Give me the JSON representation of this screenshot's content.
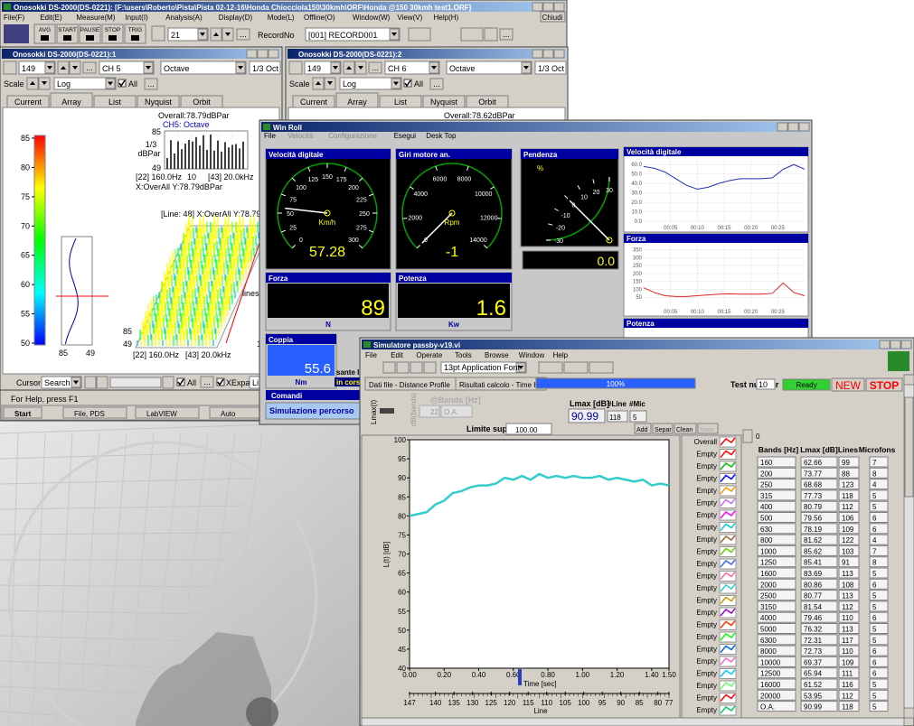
{
  "onosokki": {
    "title": "Onosokki DS-2000(DS-0221): [F:\\users\\Roberto\\Pista\\Pista 02-12-16\\Honda Chiocciola150\\30kmh\\ORF\\Honda @150 30kmh test1.ORF]",
    "close_button": "Chiudi",
    "menu": [
      "File(F)",
      "Edit(E)",
      "Measure(M)",
      "Input(I)",
      "Analysis(A)",
      "Display(D)",
      "Mode(L)",
      "Offline(O)",
      "Window(W)",
      "View(V)",
      "Help(H)"
    ],
    "toolbar": [
      "AVG",
      "START",
      "PAUSE",
      "STOP",
      "TRIG"
    ],
    "frame": "21",
    "ellipsis": "...",
    "record_label": "RecordNo",
    "record_value": "[001]  RECORD001",
    "panels": [
      {
        "title": "Onosokki DS-2000(DS-0221):1",
        "frame": "149",
        "channel": "CH 5",
        "mode": "Octave",
        "band": "1/3 Oct",
        "scale_label": "Scale",
        "scale": "Log",
        "all": "All",
        "tabs": [
          "Current",
          "Array",
          "List",
          "Nyquist",
          "Orbit"
        ],
        "overall": "Overall:78.79dBPar"
      },
      {
        "title": "Onosokki DS-2000(DS-0221):2",
        "frame": "149",
        "channel": "CH 6",
        "mode": "Octave",
        "band": "1/3 Oct",
        "scale_label": "Scale",
        "scale": "Log",
        "all": "All",
        "tabs": [
          "Current",
          "Array",
          "List",
          "Nyquist",
          "Orbit"
        ],
        "overall": "Overall:78.62dBPar"
      }
    ],
    "spectrum": {
      "channel": "CH5: Octave",
      "y_max": "85",
      "unit_top": "1/3",
      "unit_bottom": "dBPar",
      "y_min": "49",
      "x_start": "[22] 160.0Hz",
      "x_mid": "10",
      "x_end": "[43] 20.0kHz",
      "cursor": "X:OverAll Y:78.79dBPar"
    },
    "colorbar": {
      "ticks": [
        85,
        80,
        75,
        70,
        65,
        60,
        55,
        50
      ]
    },
    "trace": {
      "x_left": "85",
      "x_right": "49"
    },
    "waterfall": {
      "cursor": "[Line: 48]   X:OverAll Y:78.79dB",
      "lines_label": "lines",
      "z_top": "85",
      "z_bottom": "49",
      "x_start": "[22] 160.0Hz",
      "x_end": "[43] 20.0kHz",
      "line_end": "1",
      "line_start": "10"
    },
    "cursor_label": "Cursor",
    "cursor_value": "Search",
    "all": "All",
    "xexpand": "XExpand",
    "lin": "Lin",
    "status": "For Help, press F1",
    "taskbar": [
      "Start",
      "File, PDS",
      "LabVIEW",
      "Auto"
    ]
  },
  "winroll": {
    "title": "Win Roll",
    "menu": [
      "File",
      "Velocità",
      "Configurazione",
      "Esegui",
      "Desk Top"
    ],
    "gauges": [
      {
        "title": "Velocità digitale",
        "value": 57.28,
        "unit": "Km/h",
        "ticks": [
          0,
          25,
          50,
          75,
          100,
          125,
          150,
          175,
          200,
          225,
          250,
          275,
          300
        ]
      },
      {
        "title": "Giri motore an.",
        "value": -1,
        "unit": "Rpm",
        "ticks": [
          0,
          2000,
          4000,
          6000,
          8000,
          10000,
          12000,
          14000
        ]
      },
      {
        "title": "Pendenza",
        "value": 0.0,
        "value_label": "0.0",
        "unit": "%",
        "ticks": [
          30,
          20,
          10,
          0,
          -10,
          -20,
          -30
        ]
      }
    ],
    "displays": [
      {
        "title": "Forza",
        "value": 89,
        "unit": "N"
      },
      {
        "title": "Potenza",
        "value": 1.6,
        "unit": "Kw"
      },
      {
        "title": "Coppia",
        "value": 55.6,
        "unit": "Nm"
      }
    ],
    "charts": [
      {
        "title": "Velocità digitale",
        "color": "#2233aa",
        "xlim": [
          0,
          30
        ],
        "ylim": [
          0,
          65
        ],
        "yticks": [
          {
            "value": 60,
            "label": "60.0"
          },
          {
            "value": 50,
            "label": "50.0"
          },
          {
            "value": 40,
            "label": "40.0"
          },
          {
            "value": 30,
            "label": "30.0"
          },
          {
            "value": 20,
            "label": "20.0"
          },
          {
            "value": 10,
            "label": "10.0"
          },
          {
            "value": 0,
            "label": "0.0"
          }
        ],
        "xticks": [
          {
            "value": 5,
            "label": "00:05"
          },
          {
            "value": 10,
            "label": "00:10"
          },
          {
            "value": 15,
            "label": "00:15"
          },
          {
            "value": 20,
            "label": "00:20"
          },
          {
            "value": 25,
            "label": "00:25"
          }
        ],
        "x": [
          0,
          2,
          4,
          6,
          8,
          10,
          12,
          14,
          16,
          18,
          20,
          22,
          24,
          26,
          28,
          30
        ],
        "values": [
          58,
          56,
          52,
          45,
          38,
          34,
          36,
          40,
          43,
          45,
          45,
          45,
          46,
          55,
          60,
          55
        ]
      },
      {
        "title": "Forza",
        "color": "#dd2222",
        "xlim": [
          0,
          30
        ],
        "ylim": [
          0,
          370
        ],
        "yticks": [
          350,
          300,
          250,
          200,
          150,
          100,
          50
        ],
        "xticks": [
          {
            "value": 5,
            "label": "00:05"
          },
          {
            "value": 10,
            "label": "00:10"
          },
          {
            "value": 15,
            "label": "00:15"
          },
          {
            "value": 20,
            "label": "00:20"
          },
          {
            "value": 25,
            "label": "00:25"
          }
        ],
        "x": [
          0,
          2,
          4,
          6,
          8,
          10,
          12,
          14,
          16,
          18,
          20,
          22,
          24,
          26,
          28,
          30
        ],
        "values": [
          110,
          80,
          60,
          55,
          55,
          60,
          65,
          70,
          72,
          70,
          70,
          70,
          75,
          140,
          80,
          60
        ]
      },
      {
        "title": "Potenza"
      }
    ],
    "comandi": "Comandi",
    "simulazione": "Simulazione percorso",
    "partial": [
      "sante Inizi",
      "in corso"
    ]
  },
  "sim": {
    "title": "Simulatore passby-v19.vi",
    "menu": [
      "File",
      "Edit",
      "Operate",
      "Tools",
      "Browse",
      "Window",
      "Help"
    ],
    "font": "13pt Application Font",
    "progress": "100%",
    "test_label": "Test number",
    "test_value": "10",
    "ready": "Ready",
    "new": "NEW",
    "stop": "STOP",
    "tabs": [
      "Dati file - Distance Profile",
      "Risultati calcolo - Time History"
    ],
    "lmax_t": "Lmax(t)",
    "bands_label": "@Bands [Hz]",
    "db_bands": "dB(bands)",
    "band_index": "22",
    "band_value": "O.A.",
    "lmax_label": "Lmax [dB]",
    "lmax_value": "90.99",
    "line_label": "#Line",
    "line_value": "118",
    "mic_label": "#Mic",
    "mic_value": "5",
    "limit_label": "Limite sup [dB]",
    "limit_value": "100.00",
    "buttons": [
      "Add",
      "Separ",
      "Clean",
      "Save"
    ],
    "chart": {
      "type": "line",
      "ylabel": "L(t) [dB]",
      "xlabel": "Time [sec]",
      "color": "#33cccc",
      "xlim": [
        0,
        1.5
      ],
      "ylim": [
        40,
        100
      ],
      "yticks": [
        100,
        95,
        90,
        85,
        80,
        75,
        70,
        65,
        60,
        55,
        50,
        45,
        40
      ],
      "xticks": [
        {
          "value": 0,
          "label": "0.00"
        },
        {
          "value": 0.2,
          "label": "0.20"
        },
        {
          "value": 0.4,
          "label": "0.40"
        },
        {
          "value": 0.6,
          "label": "0.60"
        },
        {
          "value": 0.8,
          "label": "0.80"
        },
        {
          "value": 1,
          "label": "1.00"
        },
        {
          "value": 1.2,
          "label": "1.20"
        },
        {
          "value": 1.4,
          "label": "1.40"
        },
        {
          "value": 1.5,
          "label": "1.50"
        }
      ],
      "x": [
        0,
        0.05,
        0.1,
        0.15,
        0.2,
        0.25,
        0.3,
        0.35,
        0.4,
        0.45,
        0.5,
        0.55,
        0.6,
        0.65,
        0.7,
        0.75,
        0.8,
        0.85,
        0.9,
        0.95,
        1,
        1.05,
        1.1,
        1.15,
        1.2,
        1.25,
        1.3,
        1.35,
        1.4,
        1.45,
        1.5
      ],
      "values": [
        80,
        80.5,
        81,
        83,
        84,
        86,
        86.5,
        87.5,
        88,
        88,
        88.5,
        90,
        89.5,
        90.5,
        89.5,
        91,
        90,
        90.5,
        90,
        90.5,
        90,
        90,
        90.5,
        89.5,
        90,
        89.5,
        89,
        89.5,
        88,
        88.5,
        88
      ],
      "line_axis_label": "Line",
      "line_ticks": [
        147,
        140,
        135,
        130,
        125,
        120,
        115,
        110,
        105,
        100,
        95,
        90,
        85,
        80,
        77
      ]
    },
    "legend": [
      {
        "name": "Overall",
        "color": "#ff0000"
      },
      {
        "name": "Empty",
        "color": "#ff0000"
      },
      {
        "name": "Empty",
        "color": "#00c000"
      },
      {
        "name": "Empty",
        "color": "#0000ff"
      },
      {
        "name": "Empty",
        "color": "#ff9900"
      },
      {
        "name": "Empty",
        "color": "#cc66ff"
      },
      {
        "name": "Empty",
        "color": "#ff00ff"
      },
      {
        "name": "Empty",
        "color": "#00cccc"
      },
      {
        "name": "Empty",
        "color": "#996633"
      },
      {
        "name": "Empty",
        "color": "#66cc00"
      },
      {
        "name": "Empty",
        "color": "#3366ff"
      },
      {
        "name": "Empty",
        "color": "#ff6699"
      },
      {
        "name": "Empty",
        "color": "#33cccc"
      },
      {
        "name": "Empty",
        "color": "#cc9900"
      },
      {
        "name": "Empty",
        "color": "#9900cc"
      },
      {
        "name": "Empty",
        "color": "#ff3300"
      },
      {
        "name": "Empty",
        "color": "#00ff00"
      },
      {
        "name": "Empty",
        "color": "#0066cc"
      },
      {
        "name": "Empty",
        "color": "#ff66cc"
      },
      {
        "name": "Empty",
        "color": "#00ccff"
      },
      {
        "name": "Empty",
        "color": "#66ff66"
      },
      {
        "name": "Empty",
        "color": "#ff0000"
      },
      {
        "name": "Empty",
        "color": "#00cc66"
      }
    ],
    "table": {
      "index": "0",
      "headers": [
        "Bands [Hz]",
        "Lmax [dB]",
        "Lines",
        "Microfons"
      ],
      "rows": [
        [
          "160",
          "62.66",
          "99",
          "7"
        ],
        [
          "200",
          "73.77",
          "88",
          "8"
        ],
        [
          "250",
          "68.68",
          "123",
          "4"
        ],
        [
          "315",
          "77.73",
          "118",
          "5"
        ],
        [
          "400",
          "80.79",
          "112",
          "5"
        ],
        [
          "500",
          "79.56",
          "106",
          "6"
        ],
        [
          "630",
          "78.19",
          "109",
          "6"
        ],
        [
          "800",
          "81.62",
          "122",
          "4"
        ],
        [
          "1000",
          "85.62",
          "103",
          "7"
        ],
        [
          "1250",
          "85.41",
          "91",
          "8"
        ],
        [
          "1600",
          "83.69",
          "113",
          "5"
        ],
        [
          "2000",
          "80.86",
          "108",
          "6"
        ],
        [
          "2500",
          "80.77",
          "113",
          "5"
        ],
        [
          "3150",
          "81.54",
          "112",
          "5"
        ],
        [
          "4000",
          "79.46",
          "110",
          "6"
        ],
        [
          "5000",
          "76.32",
          "113",
          "5"
        ],
        [
          "6300",
          "72.31",
          "117",
          "5"
        ],
        [
          "8000",
          "72.73",
          "110",
          "6"
        ],
        [
          "10000",
          "69.37",
          "109",
          "6"
        ],
        [
          "12500",
          "65.94",
          "111",
          "6"
        ],
        [
          "16000",
          "61.52",
          "116",
          "5"
        ],
        [
          "20000",
          "53.95",
          "112",
          "5"
        ],
        [
          "O.A.",
          "90.99",
          "118",
          "5"
        ]
      ]
    }
  }
}
